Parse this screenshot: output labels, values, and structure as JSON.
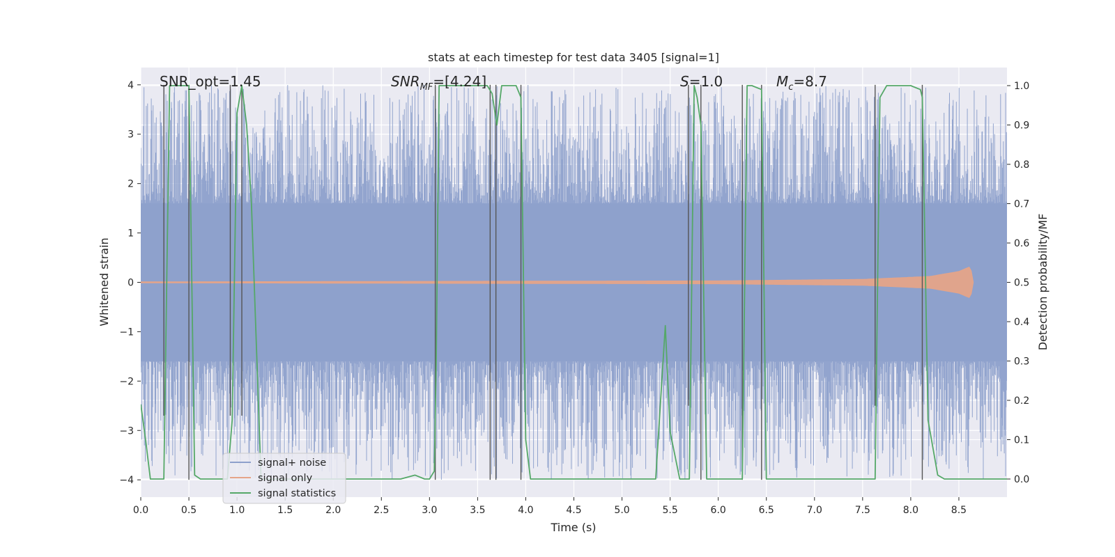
{
  "chart_data": {
    "type": "line",
    "title": "stats at each timestep for test data 3405 [signal=1]",
    "xlabel": "Time (s)",
    "ylabel_left": "Whitened strain",
    "ylabel_right": "Detection probability/MF",
    "xlim": [
      0,
      9.0
    ],
    "ylim_left": [
      -4.35,
      4.35
    ],
    "ylim_right": [
      -0.046,
      1.046
    ],
    "x_ticks": [
      0.0,
      0.5,
      1.0,
      1.5,
      2.0,
      2.5,
      3.0,
      3.5,
      4.0,
      4.5,
      5.0,
      5.5,
      6.0,
      6.5,
      7.0,
      7.5,
      8.0,
      8.5
    ],
    "x_tick_labels": [
      "0.0",
      "0.5",
      "1.0",
      "1.5",
      "2.0",
      "2.5",
      "3.0",
      "3.5",
      "4.0",
      "4.5",
      "5.0",
      "5.5",
      "6.0",
      "6.5",
      "7.0",
      "7.5",
      "8.0",
      "8.5"
    ],
    "y_left_ticks": [
      -4,
      -3,
      -2,
      -1,
      0,
      1,
      2,
      3,
      4
    ],
    "y_left_tick_labels": [
      "−4",
      "−3",
      "−2",
      "−1",
      "0",
      "1",
      "2",
      "3",
      "4"
    ],
    "y_right_ticks": [
      0.0,
      0.1,
      0.2,
      0.3,
      0.4,
      0.5,
      0.6,
      0.7,
      0.8,
      0.9,
      1.0
    ],
    "y_right_tick_labels": [
      "0.0",
      "0.1",
      "0.2",
      "0.3",
      "0.4",
      "0.5",
      "0.6",
      "0.7",
      "0.8",
      "0.9",
      "1.0"
    ],
    "grid": true,
    "legend_position": "lower-left",
    "annotations": [
      {
        "text": "SNR_opt=1.45",
        "x": 0.2
      },
      {
        "text": "SNR_MF=[4.24]",
        "x": 2.6
      },
      {
        "text": "S=1.0",
        "x": 5.6
      },
      {
        "text": "M_c=8.7",
        "x": 6.6
      }
    ],
    "series": [
      {
        "name": "signal+ noise",
        "axis": "left",
        "color": "#8da0cb",
        "noise_band": {
          "typical_abs": [
            -1.6,
            1.6
          ],
          "peak_abs": 4.0
        },
        "x_range": [
          0,
          9.0
        ]
      },
      {
        "name": "signal only",
        "axis": "left",
        "color": "#e5a488",
        "x_range": [
          0,
          8.65
        ],
        "amplitude_growth": [
          [
            0,
            0.01
          ],
          [
            6.0,
            0.03
          ],
          [
            7.5,
            0.06
          ],
          [
            8.2,
            0.12
          ],
          [
            8.5,
            0.22
          ],
          [
            8.62,
            0.32
          ],
          [
            8.65,
            0.0
          ]
        ]
      },
      {
        "name": "signal statistics",
        "axis": "right",
        "color": "#55a868",
        "x": [
          0.0,
          0.05,
          0.1,
          0.24,
          0.3,
          0.5,
          0.56,
          0.62,
          0.9,
          0.95,
          1.0,
          1.05,
          1.1,
          1.15,
          1.25,
          1.5,
          2.0,
          2.5,
          2.7,
          2.85,
          2.95,
          3.0,
          3.05,
          3.07,
          3.1,
          3.15,
          3.6,
          3.65,
          3.7,
          3.75,
          3.9,
          3.95,
          4.0,
          4.05,
          4.1,
          4.5,
          5.0,
          5.35,
          5.45,
          5.5,
          5.6,
          5.7,
          5.75,
          5.78,
          5.82,
          5.88,
          6.0,
          6.25,
          6.3,
          6.35,
          6.45,
          6.5,
          6.6,
          7.0,
          7.63,
          7.68,
          7.75,
          8.0,
          8.1,
          8.12,
          8.18,
          8.28,
          8.35,
          8.5,
          9.0
        ],
        "y": [
          0.19,
          0.1,
          0.0,
          0.0,
          1.0,
          1.0,
          0.01,
          0.0,
          0.0,
          0.15,
          0.93,
          1.0,
          0.9,
          0.7,
          0.0,
          0.0,
          0.0,
          0.0,
          0.0,
          0.01,
          0.0,
          0.0,
          0.02,
          0.3,
          1.0,
          1.0,
          1.0,
          0.98,
          0.9,
          1.0,
          1.0,
          0.97,
          0.1,
          0.0,
          0.0,
          0.0,
          0.0,
          0.0,
          0.39,
          0.12,
          0.0,
          0.0,
          1.0,
          0.97,
          0.9,
          0.0,
          0.0,
          0.0,
          1.0,
          1.0,
          0.99,
          0.0,
          0.0,
          0.0,
          0.0,
          0.97,
          1.0,
          1.0,
          0.99,
          0.97,
          0.15,
          0.01,
          0.0,
          0.0,
          0.0
        ]
      }
    ],
    "vertical_lines": [
      {
        "x": 0.24,
        "y_top": 4.0,
        "y_bottom": -2.7
      },
      {
        "x": 0.5,
        "y_top": 4.0,
        "y_bottom": -4.0
      },
      {
        "x": 0.93,
        "y_top": 4.0,
        "y_bottom": -2.7
      },
      {
        "x": 1.05,
        "y_top": 4.0,
        "y_bottom": -2.7
      },
      {
        "x": 3.06,
        "y_top": 4.0,
        "y_bottom": -4.0
      },
      {
        "x": 3.63,
        "y_top": 4.0,
        "y_bottom": -4.0
      },
      {
        "x": 3.69,
        "y_top": 4.0,
        "y_bottom": -4.0
      },
      {
        "x": 3.95,
        "y_top": 4.0,
        "y_bottom": -4.0
      },
      {
        "x": 5.69,
        "y_top": 4.0,
        "y_bottom": -2.5
      },
      {
        "x": 5.82,
        "y_top": 4.0,
        "y_bottom": -4.0
      },
      {
        "x": 6.25,
        "y_top": 4.0,
        "y_bottom": -4.0
      },
      {
        "x": 6.45,
        "y_top": 4.0,
        "y_bottom": -4.0
      },
      {
        "x": 7.63,
        "y_top": 4.0,
        "y_bottom": -2.5
      },
      {
        "x": 8.12,
        "y_top": 4.0,
        "y_bottom": -4.0
      }
    ]
  }
}
